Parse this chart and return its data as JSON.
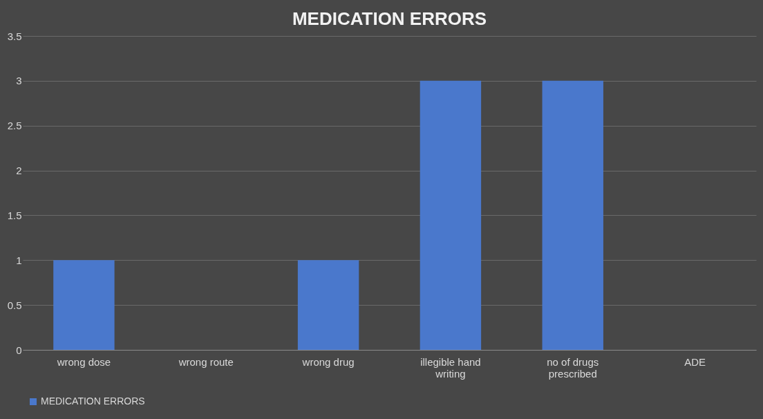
{
  "chart_data": {
    "type": "bar",
    "title": "MEDICATION ERRORS",
    "categories": [
      "wrong dose",
      "wrong route",
      "wrong drug",
      "illegible hand\nwriting",
      "no of drugs\nprescribed",
      "ADE"
    ],
    "series": [
      {
        "name": "MEDICATION ERRORS",
        "color": "#4a78cc",
        "values": [
          1,
          0,
          1,
          3,
          3,
          0
        ]
      }
    ],
    "ylim": [
      0,
      3.5
    ],
    "yticks": [
      0,
      0.5,
      1,
      1.5,
      2,
      2.5,
      3,
      3.5
    ],
    "grid": "y",
    "legend": "bottom"
  }
}
